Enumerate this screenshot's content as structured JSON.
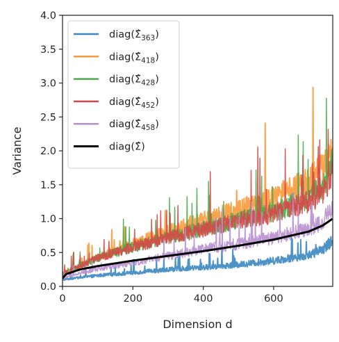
{
  "chart_data": {
    "type": "line",
    "title": "",
    "xlabel": "Dimension d",
    "ylabel": "Variance",
    "xlim": [
      0,
      768
    ],
    "ylim": [
      0,
      4.0
    ],
    "xticks": [
      0,
      200,
      400,
      600
    ],
    "xtick_labels": [
      "0",
      "200",
      "400",
      "600"
    ],
    "yticks": [
      0.0,
      0.5,
      1.0,
      1.5,
      2.0,
      2.5,
      3.0,
      3.5,
      4.0
    ],
    "ytick_labels": [
      "0.0",
      "0.5",
      "1.0",
      "1.5",
      "2.0",
      "2.5",
      "3.0",
      "3.5",
      "4.0"
    ],
    "grid": false,
    "legend_position": "top-left",
    "x_count": 768,
    "series": [
      {
        "name": "diag(Σ̂363)",
        "legend_base": "diag(",
        "legend_sub": "363",
        "color": "#3a87c0",
        "linewidth": 2,
        "x": [
          0,
          100,
          200,
          300,
          400,
          500,
          600,
          700,
          740,
          768
        ],
        "values": [
          0.1,
          0.16,
          0.2,
          0.25,
          0.28,
          0.32,
          0.38,
          0.46,
          0.55,
          0.68
        ]
      },
      {
        "name": "diag(Σ̂418)",
        "legend_base": "diag(",
        "legend_sub": "418",
        "color": "#f99a3a",
        "linewidth": 2,
        "x": [
          0,
          100,
          200,
          300,
          400,
          500,
          600,
          700,
          740,
          768
        ],
        "values": [
          0.18,
          0.42,
          0.62,
          0.8,
          0.98,
          1.12,
          1.3,
          1.55,
          1.75,
          1.95
        ]
      },
      {
        "name": "diag(Σ̂428)",
        "legend_base": "diag(",
        "legend_sub": "428",
        "color": "#4aab4a",
        "linewidth": 1.5,
        "x": [
          0,
          100,
          200,
          300,
          400,
          500,
          600,
          700,
          740,
          768
        ],
        "values": [
          0.2,
          0.42,
          0.58,
          0.72,
          0.85,
          0.98,
          1.1,
          1.3,
          1.5,
          1.85
        ]
      },
      {
        "name": "diag(Σ̂452)",
        "legend_base": "diag(",
        "legend_sub": "452",
        "color": "#d84747",
        "linewidth": 1.5,
        "x": [
          0,
          100,
          200,
          300,
          400,
          500,
          600,
          700,
          740,
          768
        ],
        "values": [
          0.18,
          0.42,
          0.58,
          0.72,
          0.84,
          0.96,
          1.08,
          1.25,
          1.4,
          1.7
        ]
      },
      {
        "name": "diag(Σ̂458)",
        "legend_base": "diag(",
        "legend_sub": "458",
        "color": "#b88fd0",
        "linewidth": 1.5,
        "x": [
          0,
          100,
          200,
          300,
          400,
          500,
          600,
          700,
          740,
          768
        ],
        "values": [
          0.12,
          0.26,
          0.35,
          0.45,
          0.55,
          0.63,
          0.72,
          0.85,
          0.95,
          1.15
        ]
      },
      {
        "name": "diag(Σ̂)",
        "legend_base": "diag(",
        "legend_sub": "",
        "color": "#000000",
        "linewidth": 3,
        "x": [
          0,
          10,
          50,
          100,
          200,
          300,
          400,
          500,
          600,
          700,
          740,
          768
        ],
        "values": [
          0.12,
          0.18,
          0.25,
          0.3,
          0.38,
          0.45,
          0.52,
          0.6,
          0.69,
          0.81,
          0.9,
          1.0
        ]
      }
    ]
  }
}
